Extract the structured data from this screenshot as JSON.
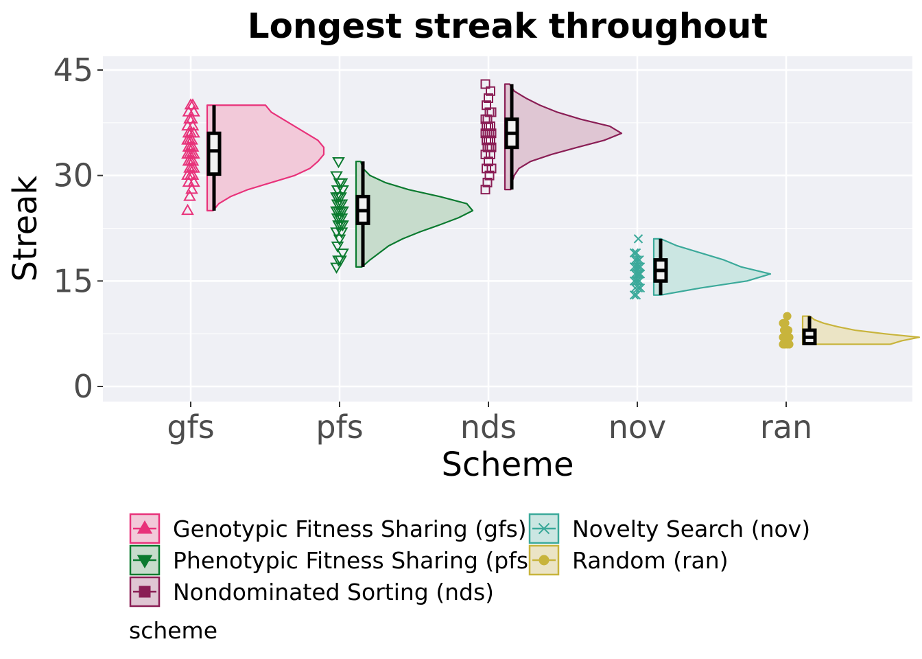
{
  "chart_data": {
    "type": "raincloud",
    "title": "Longest streak throughout",
    "xlabel": "Scheme",
    "ylabel": "Streak",
    "ylim": [
      -2,
      47
    ],
    "yticks": [
      0,
      15,
      30,
      45
    ],
    "grid": true,
    "legend_title": "scheme",
    "legend_placement": "bottom",
    "categories": [
      "gfs",
      "pfs",
      "nds",
      "nov",
      "ran"
    ],
    "series": [
      {
        "key": "gfs",
        "name": "Genotypic Fitness Sharing (gfs)",
        "color": "#e8327a",
        "fill": "#f2c9d9",
        "marker": "triangle-up",
        "box": {
          "min": 25,
          "q1": 30.2,
          "median": 33.5,
          "q3": 36,
          "max": 40
        },
        "density": [
          [
            25,
            0.05
          ],
          [
            26,
            0.1
          ],
          [
            27,
            0.2
          ],
          [
            28,
            0.35
          ],
          [
            29,
            0.55
          ],
          [
            30,
            0.75
          ],
          [
            31,
            0.88
          ],
          [
            32,
            0.95
          ],
          [
            33,
            1.0
          ],
          [
            34,
            1.0
          ],
          [
            35,
            0.95
          ],
          [
            36,
            0.85
          ],
          [
            37,
            0.75
          ],
          [
            38,
            0.65
          ],
          [
            39,
            0.55
          ],
          [
            40,
            0.5
          ]
        ],
        "points": [
          25,
          27,
          28,
          29,
          29,
          30,
          30,
          30,
          31,
          31,
          31,
          32,
          32,
          32,
          33,
          33,
          33,
          33,
          34,
          34,
          34,
          35,
          35,
          35,
          36,
          36,
          36,
          37,
          37,
          38,
          38,
          39,
          39,
          40,
          40
        ]
      },
      {
        "key": "pfs",
        "name": "Phenotypic Fitness Sharing (pfs)",
        "color": "#0b7a2f",
        "fill": "#c7dccc",
        "marker": "triangle-down",
        "box": {
          "min": 17,
          "q1": 23.2,
          "median": 25,
          "q3": 27,
          "max": 32
        },
        "density": [
          [
            17,
            0.05
          ],
          [
            18,
            0.12
          ],
          [
            19,
            0.2
          ],
          [
            20,
            0.28
          ],
          [
            21,
            0.4
          ],
          [
            22,
            0.55
          ],
          [
            23,
            0.72
          ],
          [
            24,
            0.88
          ],
          [
            25,
            1.0
          ],
          [
            26,
            0.95
          ],
          [
            27,
            0.72
          ],
          [
            28,
            0.45
          ],
          [
            29,
            0.25
          ],
          [
            30,
            0.12
          ],
          [
            31,
            0.06
          ],
          [
            32,
            0.04
          ]
        ],
        "points": [
          17,
          18,
          18,
          19,
          20,
          21,
          22,
          22,
          23,
          23,
          23,
          24,
          24,
          24,
          25,
          25,
          25,
          25,
          26,
          26,
          26,
          27,
          27,
          27,
          28,
          28,
          29,
          29,
          30,
          32
        ]
      },
      {
        "key": "nds",
        "name": "Nondominated Sorting (nds)",
        "color": "#8a1e55",
        "fill": "#dfc6d3",
        "marker": "square",
        "box": {
          "min": 28,
          "q1": 34,
          "median": 36,
          "q3": 38,
          "max": 43
        },
        "density": [
          [
            28,
            0.05
          ],
          [
            29,
            0.06
          ],
          [
            30,
            0.08
          ],
          [
            31,
            0.12
          ],
          [
            32,
            0.22
          ],
          [
            33,
            0.4
          ],
          [
            34,
            0.62
          ],
          [
            35,
            0.85
          ],
          [
            36,
            1.0
          ],
          [
            37,
            0.9
          ],
          [
            38,
            0.65
          ],
          [
            39,
            0.45
          ],
          [
            40,
            0.3
          ],
          [
            41,
            0.18
          ],
          [
            42,
            0.08
          ],
          [
            43,
            0.04
          ]
        ],
        "points": [
          28,
          29,
          30,
          31,
          31,
          32,
          33,
          33,
          34,
          34,
          34,
          35,
          35,
          35,
          36,
          36,
          36,
          36,
          37,
          37,
          37,
          38,
          38,
          39,
          39,
          40,
          41,
          42,
          43
        ]
      },
      {
        "key": "nov",
        "name": "Novelty Search (nov)",
        "color": "#3ba99a",
        "fill": "#cbe6e2",
        "marker": "x",
        "box": {
          "min": 13,
          "q1": 15,
          "median": 16.5,
          "q3": 18,
          "max": 21
        },
        "density": [
          [
            13,
            0.06
          ],
          [
            14,
            0.4
          ],
          [
            15,
            0.8
          ],
          [
            16,
            1.0
          ],
          [
            17,
            0.75
          ],
          [
            18,
            0.6
          ],
          [
            19,
            0.4
          ],
          [
            20,
            0.2
          ],
          [
            21,
            0.06
          ]
        ],
        "points": [
          13,
          13,
          14,
          14,
          14,
          15,
          15,
          15,
          15,
          16,
          16,
          16,
          16,
          16,
          17,
          17,
          17,
          17,
          18,
          18,
          18,
          19,
          19,
          21
        ]
      },
      {
        "key": "ran",
        "name": "Random (ran)",
        "color": "#c8b43c",
        "fill": "#ebe4c5",
        "marker": "circle",
        "box": {
          "min": 6,
          "q1": 6.1,
          "median": 7,
          "q3": 8,
          "max": 10
        },
        "density": [
          [
            6,
            0.75
          ],
          [
            6.5,
            0.85
          ],
          [
            7,
            1.0
          ],
          [
            7.5,
            0.7
          ],
          [
            8,
            0.45
          ],
          [
            8.5,
            0.3
          ],
          [
            9,
            0.18
          ],
          [
            9.5,
            0.1
          ],
          [
            10,
            0.06
          ]
        ],
        "points": [
          6,
          6,
          6,
          6,
          6,
          7,
          7,
          7,
          7,
          7,
          7,
          8,
          8,
          8,
          9,
          9,
          10
        ]
      }
    ]
  }
}
